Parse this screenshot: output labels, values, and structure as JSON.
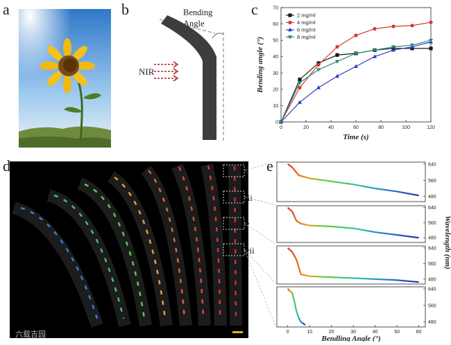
{
  "panels": {
    "a": {
      "letter": "a"
    },
    "b": {
      "letter": "b",
      "bending_angle_label_1": "Bending",
      "bending_angle_label_2": "Angle",
      "nir_label": "NIR"
    },
    "c": {
      "letter": "c"
    },
    "d": {
      "letter": "d",
      "frame_labels": [
        "i",
        "iii",
        "v",
        "vii"
      ]
    },
    "e": {
      "letter": "e"
    }
  },
  "watermark": "六载吉园",
  "chart_data": [
    {
      "type": "line",
      "title": "",
      "xlabel": "Time (s)",
      "ylabel": "Bending angle (°)",
      "xlim": [
        0,
        120
      ],
      "ylim": [
        0,
        70
      ],
      "xticks": [
        0,
        20,
        40,
        60,
        80,
        100,
        120
      ],
      "yticks": [
        0,
        10,
        20,
        30,
        40,
        50,
        60,
        70
      ],
      "x": [
        0,
        15,
        30,
        45,
        60,
        75,
        90,
        105,
        120
      ],
      "series": [
        {
          "name": "2 mg/ml",
          "color": "#1a1a1a",
          "marker": "square",
          "values": [
            0,
            26,
            36,
            41,
            42,
            44,
            45,
            45,
            45
          ]
        },
        {
          "name": "4 mg/ml",
          "color": "#d9362b",
          "marker": "circle",
          "values": [
            0,
            21,
            35,
            46,
            53,
            57,
            58.5,
            59,
            61
          ]
        },
        {
          "name": "6 mg/ml",
          "color": "#2b3fbf",
          "marker": "triangle",
          "values": [
            0,
            12,
            21,
            28,
            34,
            40,
            44,
            46,
            49
          ]
        },
        {
          "name": "8 mg/ml",
          "color": "#23877f",
          "marker": "triangle-down",
          "values": [
            0,
            24,
            32,
            37,
            42,
            44,
            46,
            47,
            50
          ]
        }
      ]
    },
    {
      "type": "line",
      "title": "",
      "xlabel": "Bendling Angle (°)",
      "ylabel": "Wavelength (nm)",
      "xticks": [
        0,
        10,
        20,
        30,
        40,
        50,
        60
      ],
      "yticks": [
        480,
        560,
        640
      ],
      "ytick_labels": [
        "640",
        "560",
        "480"
      ],
      "panels": [
        {
          "name": "i",
          "yticks_shown": [
            640,
            560,
            480
          ],
          "values_x": [
            0,
            2,
            5,
            10,
            20,
            30,
            40,
            50,
            60
          ],
          "values_y": [
            640,
            625,
            585,
            570,
            555,
            540,
            520,
            505,
            485
          ]
        },
        {
          "name": "iii",
          "yticks_shown": [
            640,
            560,
            480
          ],
          "values_x": [
            0,
            2,
            4,
            6,
            10,
            20,
            30,
            40,
            50,
            60
          ],
          "values_y": [
            640,
            620,
            570,
            555,
            545,
            540,
            530,
            510,
            495,
            480
          ]
        },
        {
          "name": "v",
          "yticks_shown": [
            640,
            560,
            480
          ],
          "values_x": [
            0,
            2,
            4,
            6,
            10,
            20,
            30,
            40,
            50,
            60
          ],
          "values_y": [
            640,
            620,
            580,
            505,
            495,
            490,
            485,
            480,
            475,
            465
          ]
        },
        {
          "name": "vii",
          "yticks_shown": [
            640,
            560,
            480
          ],
          "values_x": [
            0,
            2,
            3,
            4,
            5,
            6,
            8
          ],
          "values_y": [
            640,
            620,
            580,
            530,
            500,
            480,
            465
          ]
        }
      ]
    }
  ]
}
